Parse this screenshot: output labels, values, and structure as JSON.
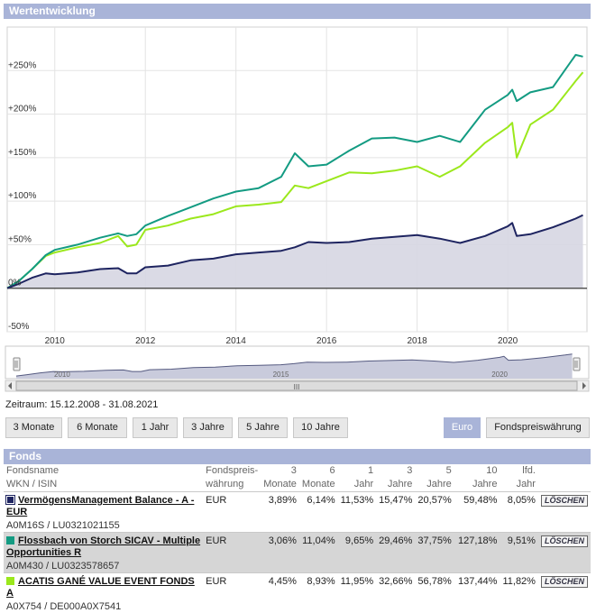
{
  "panel_title": "Wertentwicklung",
  "zeitraum": "Zeitraum: 15.12.2008 - 31.08.2021",
  "periods": [
    "3 Monate",
    "6 Monate",
    "1 Jahr",
    "3 Jahre",
    "5 Jahre",
    "10 Jahre"
  ],
  "currency_buttons": [
    {
      "label": "Euro",
      "active": true
    },
    {
      "label": "Fondspreiswährung",
      "active": false
    }
  ],
  "navigator": {
    "ticks": [
      "2010",
      "2015",
      "2020"
    ],
    "scroll_grip": "III"
  },
  "colors": {
    "series1": "#1e2460",
    "series2": "#139b82",
    "series3": "#9be81c",
    "panel": "#a9b4d8",
    "active_button": "#a9b4d8"
  },
  "chart_data": {
    "type": "line",
    "title": "",
    "xlabel": "",
    "ylabel": "",
    "x_ticks": [
      "2010",
      "2012",
      "2014",
      "2016",
      "2018",
      "2020"
    ],
    "y_ticks": [
      "+250%",
      "+200%",
      "+150%",
      "+100%",
      "+50%",
      "0%",
      "-50%"
    ],
    "y_tick_values": [
      250,
      200,
      150,
      100,
      50,
      0,
      -50
    ],
    "xlim": [
      2008.95,
      2021.75
    ],
    "ylim": [
      -50,
      300
    ],
    "grid": true,
    "series": [
      {
        "name": "VermögensManagement Balance - A - EUR",
        "area": true,
        "x": [
          2008.95,
          2009.2,
          2009.5,
          2009.8,
          2010.0,
          2010.5,
          2011.0,
          2011.4,
          2011.6,
          2011.8,
          2012.0,
          2012.5,
          2013.0,
          2013.5,
          2014.0,
          2014.5,
          2015.0,
          2015.3,
          2015.6,
          2016.0,
          2016.5,
          2017.0,
          2017.5,
          2018.0,
          2018.5,
          2018.95,
          2019.5,
          2020.0,
          2020.1,
          2020.2,
          2020.5,
          2021.0,
          2021.5,
          2021.66
        ],
        "y": [
          0,
          5,
          12,
          17,
          16,
          18,
          22,
          23,
          17,
          17,
          24,
          26,
          32,
          34,
          39,
          41,
          43,
          47,
          53,
          52,
          53,
          57,
          59,
          61,
          57,
          52,
          60,
          71,
          75,
          60,
          62,
          70,
          80,
          84
        ]
      },
      {
        "name": "Flossbach von Storch SICAV - Multiple Opportunities R",
        "x": [
          2008.95,
          2009.2,
          2009.5,
          2009.8,
          2010.0,
          2010.5,
          2011.0,
          2011.4,
          2011.6,
          2011.8,
          2012.0,
          2012.5,
          2013.0,
          2013.5,
          2014.0,
          2014.5,
          2015.0,
          2015.3,
          2015.6,
          2016.0,
          2016.5,
          2017.0,
          2017.5,
          2018.0,
          2018.5,
          2018.95,
          2019.5,
          2020.0,
          2020.1,
          2020.2,
          2020.5,
          2021.0,
          2021.5,
          2021.66
        ],
        "y": [
          0,
          8,
          22,
          38,
          44,
          50,
          58,
          63,
          60,
          62,
          72,
          83,
          93,
          103,
          111,
          115,
          128,
          155,
          140,
          142,
          158,
          172,
          173,
          168,
          175,
          168,
          205,
          222,
          228,
          215,
          225,
          231,
          268,
          266
        ]
      },
      {
        "name": "ACATIS GANÉ VALUE EVENT FONDS A",
        "x": [
          2008.95,
          2009.2,
          2009.5,
          2009.8,
          2010.0,
          2010.5,
          2011.0,
          2011.4,
          2011.6,
          2011.8,
          2012.0,
          2012.5,
          2013.0,
          2013.5,
          2014.0,
          2014.5,
          2015.0,
          2015.3,
          2015.6,
          2016.0,
          2016.5,
          2017.0,
          2017.5,
          2018.0,
          2018.5,
          2018.95,
          2019.5,
          2020.0,
          2020.1,
          2020.2,
          2020.5,
          2021.0,
          2021.5,
          2021.66
        ],
        "y": [
          0,
          8,
          22,
          37,
          41,
          47,
          52,
          60,
          48,
          50,
          67,
          72,
          80,
          85,
          94,
          96,
          99,
          118,
          115,
          123,
          133,
          132,
          135,
          140,
          128,
          140,
          167,
          185,
          190,
          150,
          188,
          205,
          238,
          248
        ]
      }
    ]
  },
  "table": {
    "title": "Fonds",
    "headers": {
      "name": "Fondsname",
      "wkn": "WKN / ISIN",
      "cur": "Fondspreis-",
      "cur2": "währung",
      "c1a": "3",
      "c1b": "Monate",
      "c2a": "6",
      "c2b": "Monate",
      "c3a": "1",
      "c3b": "Jahr",
      "c4a": "3",
      "c4b": "Jahre",
      "c5a": "5",
      "c5b": "Jahre",
      "c6a": "10",
      "c6b": "Jahre",
      "c7a": "lfd.",
      "c7b": "Jahr"
    },
    "rows": [
      {
        "name": "VermögensManagement Balance - A - EUR",
        "isin": "A0M16S / LU0321021155",
        "currency": "EUR",
        "m3": "3,89%",
        "m6": "6,14%",
        "y1": "11,53%",
        "y3": "15,47%",
        "y5": "20,57%",
        "y10": "59,48%",
        "ytd": "8,05%",
        "delete": "LÖSCHEN"
      },
      {
        "name": "Flossbach von Storch SICAV - Multiple Opportunities R",
        "isin": "A0M430 / LU0323578657",
        "currency": "EUR",
        "m3": "3,06%",
        "m6": "11,04%",
        "y1": "9,65%",
        "y3": "29,46%",
        "y5": "37,75%",
        "y10": "127,18%",
        "ytd": "9,51%",
        "delete": "LÖSCHEN"
      },
      {
        "name": "ACATIS GANÉ VALUE EVENT FONDS A",
        "isin": "A0X754 / DE000A0X7541",
        "currency": "EUR",
        "m3": "4,45%",
        "m6": "8,93%",
        "y1": "11,95%",
        "y3": "32,66%",
        "y5": "56,78%",
        "y10": "137,44%",
        "ytd": "11,82%",
        "delete": "LÖSCHEN"
      }
    ]
  }
}
